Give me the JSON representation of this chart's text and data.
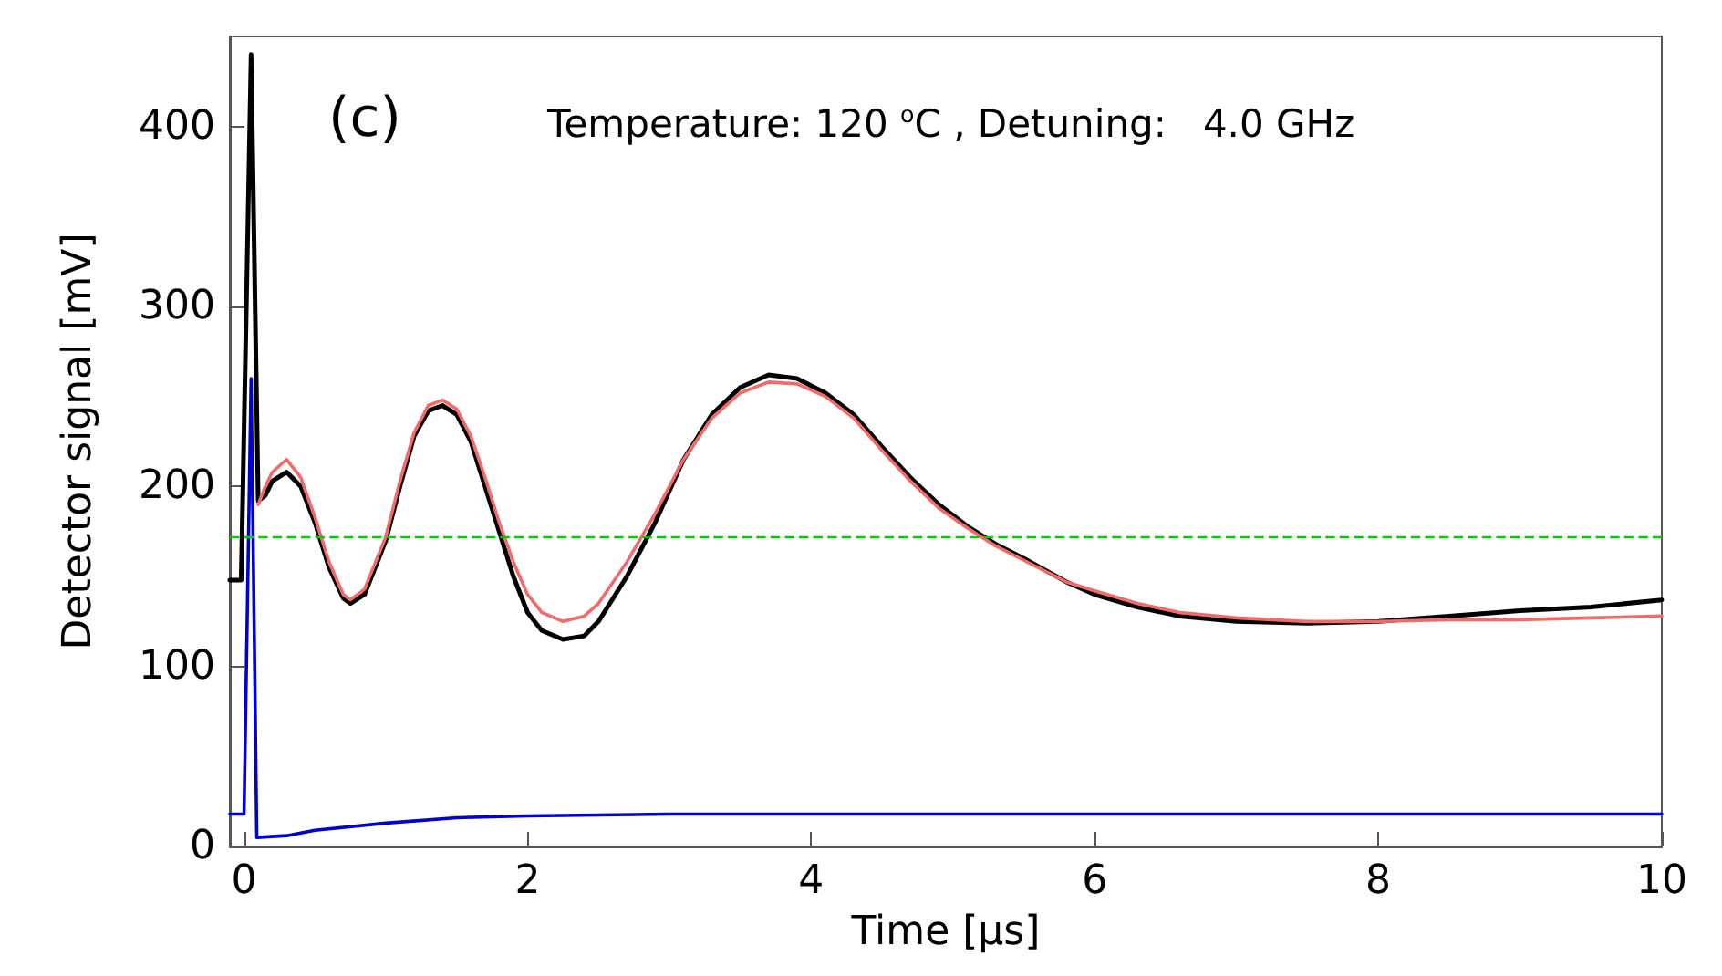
{
  "chart_data": {
    "type": "line",
    "xlabel": "Time [μs]",
    "ylabel": "Detector signal [mV]",
    "annotations": [
      "(c)",
      "Temperature: 120 $^{o}$C , Detuning:   4.0 GHz"
    ],
    "xlim": [
      -0.1,
      10
    ],
    "xticks": [
      0,
      2,
      4,
      6,
      8,
      10
    ],
    "ylim": [
      0,
      450
    ],
    "yticks": [
      0,
      100,
      200,
      300,
      400
    ],
    "grid": false,
    "marker": "none",
    "line_style": "solid",
    "ref_lines": [
      {
        "axis": "y",
        "value": 172,
        "label": null,
        "color": "#00cc00",
        "line_style": "dashed"
      }
    ],
    "series": [
      {
        "color": "#000000",
        "x": [
          -0.1,
          -0.02,
          0.05,
          0.1,
          0.15,
          0.2,
          0.3,
          0.4,
          0.5,
          0.6,
          0.7,
          0.75,
          0.85,
          1.0,
          1.1,
          1.2,
          1.3,
          1.4,
          1.5,
          1.6,
          1.7,
          1.8,
          1.9,
          2.0,
          2.1,
          2.25,
          2.4,
          2.5,
          2.7,
          2.9,
          3.1,
          3.3,
          3.5,
          3.7,
          3.9,
          4.1,
          4.3,
          4.5,
          4.7,
          4.9,
          5.1,
          5.3,
          5.5,
          5.8,
          6.0,
          6.3,
          6.6,
          7.0,
          7.5,
          8.0,
          8.5,
          9.0,
          9.5,
          10.0
        ],
        "values": [
          148,
          148,
          440,
          192,
          195,
          203,
          208,
          200,
          180,
          155,
          138,
          135,
          140,
          170,
          200,
          228,
          242,
          245,
          240,
          225,
          200,
          175,
          150,
          130,
          120,
          115,
          117,
          125,
          150,
          180,
          215,
          240,
          255,
          262,
          260,
          252,
          240,
          222,
          205,
          190,
          178,
          168,
          160,
          147,
          140,
          133,
          128,
          125,
          124,
          125,
          128,
          131,
          133,
          137
        ]
      },
      {
        "color": "#f26b6b",
        "x": [
          0.1,
          0.15,
          0.2,
          0.3,
          0.4,
          0.5,
          0.6,
          0.7,
          0.75,
          0.85,
          1.0,
          1.1,
          1.2,
          1.3,
          1.4,
          1.5,
          1.6,
          1.7,
          1.8,
          1.9,
          2.0,
          2.1,
          2.25,
          2.4,
          2.5,
          2.7,
          2.9,
          3.1,
          3.3,
          3.5,
          3.7,
          3.9,
          4.1,
          4.3,
          4.5,
          4.7,
          4.9,
          5.1,
          5.3,
          5.5,
          5.8,
          6.0,
          6.3,
          6.6,
          7.0,
          7.5,
          8.0,
          8.5,
          9.0,
          9.5,
          10.0
        ],
        "values": [
          190,
          200,
          208,
          215,
          205,
          183,
          158,
          140,
          137,
          143,
          172,
          203,
          230,
          245,
          248,
          243,
          228,
          205,
          180,
          158,
          140,
          130,
          125,
          128,
          135,
          158,
          185,
          215,
          238,
          252,
          258,
          257,
          250,
          238,
          220,
          203,
          188,
          177,
          167,
          159,
          147,
          142,
          135,
          130,
          127,
          125,
          125,
          126,
          126,
          127,
          128
        ]
      },
      {
        "color": "#0000cc",
        "x": [
          -0.1,
          0.0,
          0.05,
          0.09,
          0.3,
          0.5,
          1.0,
          1.5,
          2.0,
          3.0,
          5.0,
          10.0
        ],
        "values": [
          18,
          18,
          260,
          5,
          6,
          9,
          13,
          16,
          17,
          18,
          18,
          18
        ]
      }
    ]
  }
}
